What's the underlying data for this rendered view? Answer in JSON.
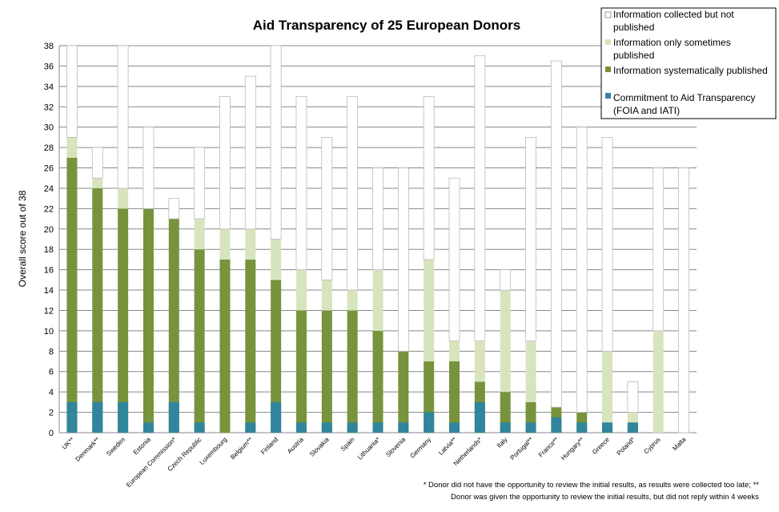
{
  "chart_data": {
    "type": "bar",
    "stacked": true,
    "title": "Aid Transparency  of 25 European  Donors",
    "ylabel": "Overall score out of 38",
    "xlabel": "",
    "ylim": [
      0,
      38
    ],
    "yticks": [
      0,
      2,
      4,
      6,
      8,
      10,
      12,
      14,
      16,
      18,
      20,
      22,
      24,
      26,
      28,
      30,
      32,
      34,
      36,
      38
    ],
    "grid": "horizontal",
    "legend_position": "top-right",
    "categories": [
      "UK**",
      "Denmark**",
      "Sweden",
      "Estonia",
      "European Commission*",
      "Czech Republic",
      "Luxembourg",
      "Belgium**",
      "Finland",
      "Austria",
      "Slovakia",
      "Spain",
      "Lithuania*",
      "Slovenia",
      "Germany",
      "Latvia**",
      "Netherlands*",
      "Italy",
      "Portugal**",
      "France**",
      "Hungary**",
      "Greece",
      "Poland*",
      "Cyprus",
      "Malta"
    ],
    "stack_series": [
      {
        "name": "Information systematically published",
        "color": "#77933c",
        "values": [
          27,
          24,
          22,
          22,
          21,
          18,
          17,
          17,
          15,
          12,
          12,
          12,
          10,
          8,
          7,
          7,
          5,
          4,
          3,
          2.5,
          2,
          1,
          1,
          0,
          0
        ]
      },
      {
        "name": "Information only sometimes published",
        "color": "#d7e4bd",
        "values": [
          2,
          1,
          2,
          0,
          0,
          3,
          3,
          3,
          4,
          4,
          3,
          2,
          6,
          0,
          10,
          2,
          4,
          10,
          6,
          0,
          0,
          7,
          1,
          10,
          0
        ]
      },
      {
        "name": "Information collected but not published",
        "color": "#ffffff",
        "values": [
          9,
          3,
          14,
          8,
          2,
          7,
          13,
          15,
          19,
          17,
          14,
          19,
          10,
          18,
          16,
          16,
          28,
          2,
          20,
          34,
          28,
          21,
          3,
          16,
          26
        ]
      }
    ],
    "commitment_series": {
      "name": "Commitment to Aid Transparency (FOIA and IATI)",
      "color": "#31859c",
      "values": [
        3,
        3,
        3,
        1,
        3,
        1,
        0,
        1,
        3,
        1,
        1,
        1,
        1,
        1,
        2,
        1,
        3,
        1,
        1,
        1.5,
        1,
        1,
        1,
        0,
        0
      ]
    },
    "legend": [
      {
        "label": "Information collected but not published",
        "color": "#ffffff"
      },
      {
        "label": "Information only sometimes published",
        "color": "#d7e4bd"
      },
      {
        "label": "Information systematically  published",
        "color": "#77933c"
      },
      {
        "label": "Commitment to Aid Transparency (FOIA and IATI)",
        "color": "#31859c"
      }
    ],
    "footnote_lines": [
      "* Donor did not have the opportunity to review the initial results, as results were collected too late; **",
      "Donor was given the opportunity to review the initial results, but did not reply within 4 weeks"
    ]
  }
}
